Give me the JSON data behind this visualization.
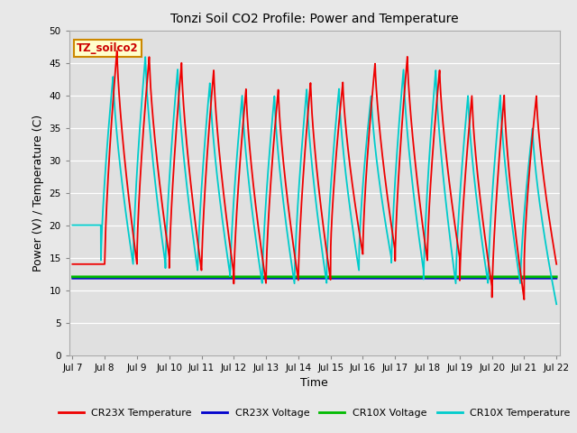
{
  "title": "Tonzi Soil CO2 Profile: Power and Temperature",
  "xlabel": "Time",
  "ylabel": "Power (V) / Temperature (C)",
  "ylim": [
    0,
    50
  ],
  "yticks": [
    0,
    5,
    10,
    15,
    20,
    25,
    30,
    35,
    40,
    45,
    50
  ],
  "xtick_labels": [
    "Jul 7",
    "Jul 8",
    "Jul 9",
    "Jul 10",
    "Jul 11",
    "Jul 12",
    "Jul 13",
    "Jul 14",
    "Jul 15",
    "Jul 16",
    "Jul 17",
    "Jul 18",
    "Jul 19",
    "Jul 20",
    "Jul 21",
    "Jul 22"
  ],
  "fig_bg_color": "#e8e8e8",
  "plot_bg_color": "#e0e0e0",
  "cr23x_temp_color": "#ee0000",
  "cr23x_volt_color": "#0000cc",
  "cr10x_volt_color": "#00bb00",
  "cr10x_temp_color": "#00cccc",
  "annotation_text": "TZ_soilco2",
  "annotation_bg": "#ffffcc",
  "annotation_border": "#cc8800",
  "volt_level_cr23x": 11.8,
  "volt_level_cr10x": 12.05,
  "legend_items": [
    "CR23X Temperature",
    "CR23X Voltage",
    "CR10X Voltage",
    "CR10X Temperature"
  ],
  "peak_temps_cr23x": [
    14,
    47,
    46,
    45,
    44,
    41,
    41,
    42,
    42,
    45,
    46,
    44,
    40,
    40,
    40,
    40
  ],
  "trough_temps_cr23x": [
    14,
    14,
    15,
    13,
    12.5,
    11,
    11.5,
    11.5,
    15.5,
    16,
    14.5,
    15,
    10.5,
    8.5,
    14,
    14
  ],
  "peak_temps_cr10x": [
    20,
    43,
    46,
    44,
    42,
    40,
    40,
    41,
    41,
    40,
    44,
    44,
    40,
    40,
    35,
    35
  ],
  "trough_temps_cr10x": [
    20,
    14,
    14,
    13,
    12.5,
    11,
    11,
    11,
    13,
    15,
    13,
    11,
    11,
    11,
    11,
    11
  ],
  "phase_cr10x": 0.12
}
